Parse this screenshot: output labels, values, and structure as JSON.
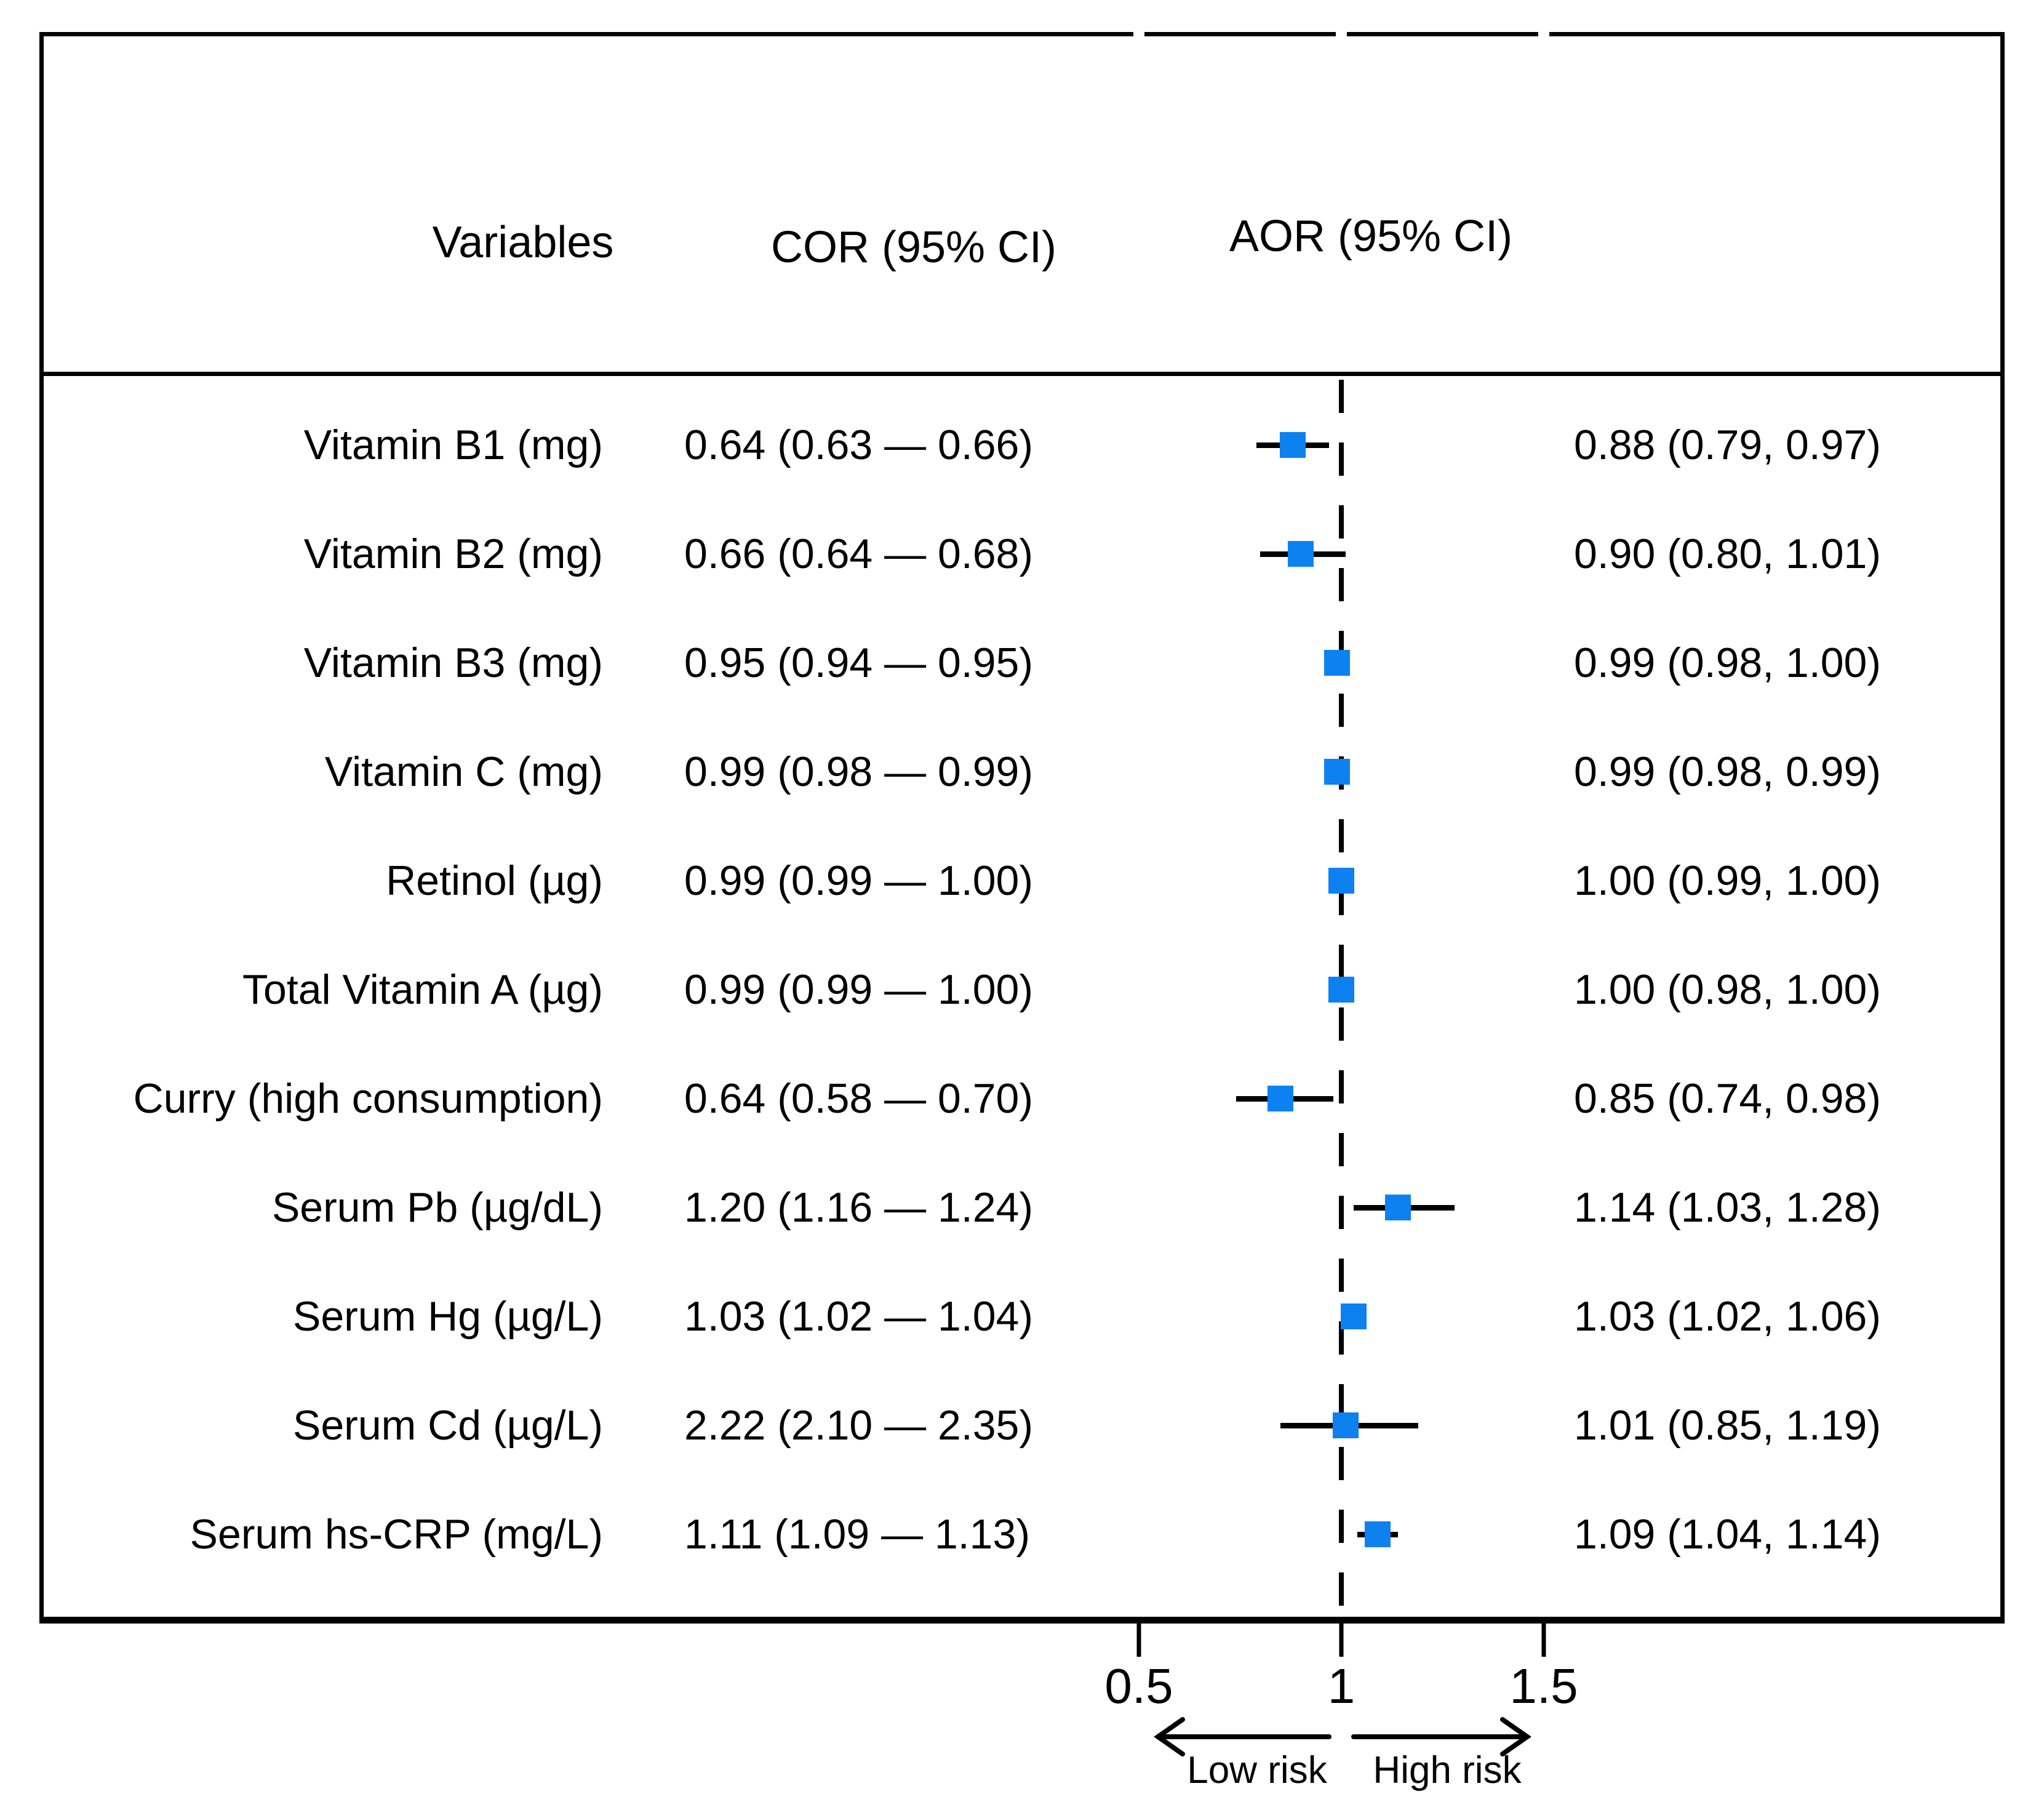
{
  "figure": {
    "kind": "forest-plot"
  },
  "header": {
    "variables": "Variables",
    "cor": "COR (95% CI)",
    "aor": "AOR (95% CI)"
  },
  "axis": {
    "ticks": [
      {
        "label": "0.5",
        "value": 0.5
      },
      {
        "label": "1",
        "value": 1
      },
      {
        "label": "1.5",
        "value": 1.5
      }
    ],
    "reference_value": 1,
    "low_risk_label": "Low risk",
    "high_risk_label": "High risk"
  },
  "colors": {
    "marker_blue": "#0e81f1",
    "line_black": "#000000"
  },
  "chart_data": {
    "type": "forest",
    "plotted_series": "AOR (95% CI)",
    "xlim": [
      0.5,
      1.5
    ],
    "grid": false,
    "rows": [
      {
        "variable": "Vitamin B1 (mg)",
        "cor_text": "0.64 (0.63 — 0.66)",
        "cor": 0.64,
        "cor_low": 0.63,
        "cor_high": 0.66,
        "aor_text": "0.88 (0.79, 0.97)",
        "aor": 0.88,
        "aor_low": 0.79,
        "aor_high": 0.97
      },
      {
        "variable": "Vitamin B2 (mg)",
        "cor_text": "0.66 (0.64 — 0.68)",
        "cor": 0.66,
        "cor_low": 0.64,
        "cor_high": 0.68,
        "aor_text": "0.90 (0.80, 1.01)",
        "aor": 0.9,
        "aor_low": 0.8,
        "aor_high": 1.01
      },
      {
        "variable": "Vitamin B3 (mg)",
        "cor_text": "0.95 (0.94 — 0.95)",
        "cor": 0.95,
        "cor_low": 0.94,
        "cor_high": 0.95,
        "aor_text": "0.99 (0.98, 1.00)",
        "aor": 0.99,
        "aor_low": 0.98,
        "aor_high": 1.0
      },
      {
        "variable": "Vitamin C (mg)",
        "cor_text": "0.99 (0.98 — 0.99)",
        "cor": 0.99,
        "cor_low": 0.98,
        "cor_high": 0.99,
        "aor_text": "0.99 (0.98, 0.99)",
        "aor": 0.99,
        "aor_low": 0.98,
        "aor_high": 0.99
      },
      {
        "variable": "Retinol (µg)",
        "cor_text": "0.99 (0.99 — 1.00)",
        "cor": 0.99,
        "cor_low": 0.99,
        "cor_high": 1.0,
        "aor_text": "1.00 (0.99, 1.00)",
        "aor": 1.0,
        "aor_low": 0.99,
        "aor_high": 1.0
      },
      {
        "variable": "Total Vitamin A (µg)",
        "cor_text": "0.99 (0.99 — 1.00)",
        "cor": 0.99,
        "cor_low": 0.99,
        "cor_high": 1.0,
        "aor_text": "1.00 (0.98, 1.00)",
        "aor": 1.0,
        "aor_low": 0.98,
        "aor_high": 1.0
      },
      {
        "variable": "Curry (high consumption)",
        "cor_text": "0.64 (0.58 — 0.70)",
        "cor": 0.64,
        "cor_low": 0.58,
        "cor_high": 0.7,
        "aor_text": "0.85 (0.74, 0.98)",
        "aor": 0.85,
        "aor_low": 0.74,
        "aor_high": 0.98
      },
      {
        "variable": "Serum Pb (µg/dL)",
        "cor_text": "1.20 (1.16 — 1.24)",
        "cor": 1.2,
        "cor_low": 1.16,
        "cor_high": 1.24,
        "aor_text": "1.14 (1.03, 1.28)",
        "aor": 1.14,
        "aor_low": 1.03,
        "aor_high": 1.28
      },
      {
        "variable": "Serum Hg (µg/L)",
        "cor_text": "1.03 (1.02 — 1.04)",
        "cor": 1.03,
        "cor_low": 1.02,
        "cor_high": 1.04,
        "aor_text": "1.03 (1.02, 1.06)",
        "aor": 1.03,
        "aor_low": 1.02,
        "aor_high": 1.06
      },
      {
        "variable": "Serum Cd (µg/L)",
        "cor_text": "2.22 (2.10 — 2.35)",
        "cor": 2.22,
        "cor_low": 2.1,
        "cor_high": 2.35,
        "aor_text": "1.01 (0.85, 1.19)",
        "aor": 1.01,
        "aor_low": 0.85,
        "aor_high": 1.19
      },
      {
        "variable": "Serum hs-CRP (mg/L)",
        "cor_text": "1.11 (1.09 — 1.13)",
        "cor": 1.11,
        "cor_low": 1.09,
        "cor_high": 1.13,
        "aor_text": "1.09 (1.04, 1.14)",
        "aor": 1.09,
        "aor_low": 1.04,
        "aor_high": 1.14
      }
    ]
  }
}
